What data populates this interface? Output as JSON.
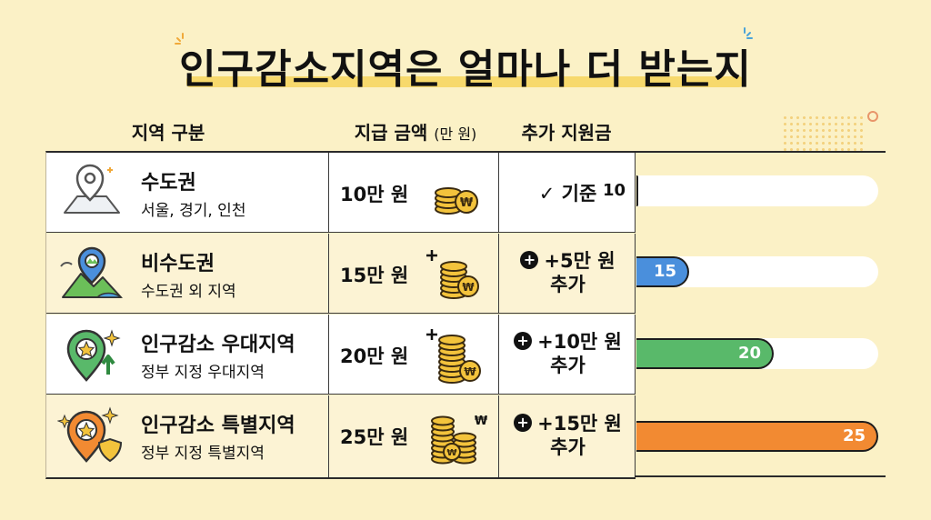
{
  "title": "인구감소지역은 얼마나 더 받는지",
  "headers": {
    "region": "지역 구분",
    "amount": "지급 금액",
    "amount_unit": "(만 원)",
    "extra": "추가 지원금"
  },
  "rows": [
    {
      "name": "수도권",
      "sub": "서울, 경기, 인천",
      "amount": "10만 원",
      "extra_line1": "✓ 기준",
      "extra_line2": "",
      "bar_value": "10",
      "bar": 10,
      "color": "#c6e0f1",
      "text_color": "#111"
    },
    {
      "name": "비수도권",
      "sub": "수도권 외 지역",
      "amount": "15만 원",
      "extra_line1": "+5만 원",
      "extra_line2": "추가",
      "bar_value": "15",
      "bar": 15,
      "color": "#4a8fdc",
      "text_color": "#fff"
    },
    {
      "name": "인구감소 우대지역",
      "sub": "정부 지정 우대지역",
      "amount": "20만 원",
      "extra_line1": "+10만 원",
      "extra_line2": "추가",
      "bar_value": "20",
      "bar": 20,
      "color": "#59b96a",
      "text_color": "#fff"
    },
    {
      "name": "인구감소 특별지역",
      "sub": "정부 지정 특별지역",
      "amount": "25만 원",
      "extra_line1": "+15만 원",
      "extra_line2": "추가",
      "bar_value": "25",
      "bar": 25,
      "color": "#f28a32",
      "text_color": "#fff"
    }
  ],
  "coin_mark": "₩",
  "colors": {
    "background": "#fbf1c6",
    "title_underline": "#f7d96c",
    "coin": "#f3c33c"
  }
}
